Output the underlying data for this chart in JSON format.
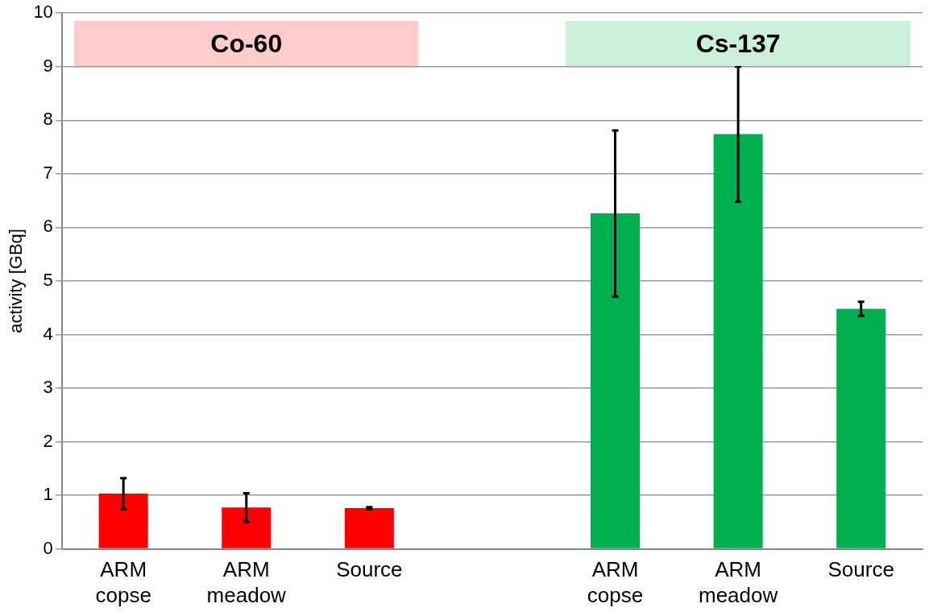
{
  "chart_data": {
    "type": "bar",
    "ylabel": "activity [GBq]",
    "categories": [
      "ARM copse",
      "ARM meadow",
      "Source",
      null,
      "ARM copse",
      "ARM meadow",
      "Source"
    ],
    "series": [
      {
        "color": "#ff0000",
        "values": [
          1.03,
          0.77,
          0.76,
          null,
          null,
          null,
          null
        ],
        "errors": [
          0.29,
          0.27,
          0.02,
          null,
          null,
          null,
          null
        ]
      },
      {
        "color": "#00b050",
        "values": [
          null,
          null,
          null,
          null,
          6.26,
          7.74,
          4.48
        ],
        "errors": [
          null,
          null,
          null,
          null,
          1.55,
          1.26,
          0.13
        ]
      }
    ],
    "annotations": [
      "Co-60",
      "Cs-137"
    ],
    "ylim": [
      0,
      10
    ],
    "yticks": [
      0,
      1,
      2,
      3,
      4,
      5,
      6,
      7,
      8,
      9,
      10
    ],
    "grid": "y",
    "legend": false
  }
}
